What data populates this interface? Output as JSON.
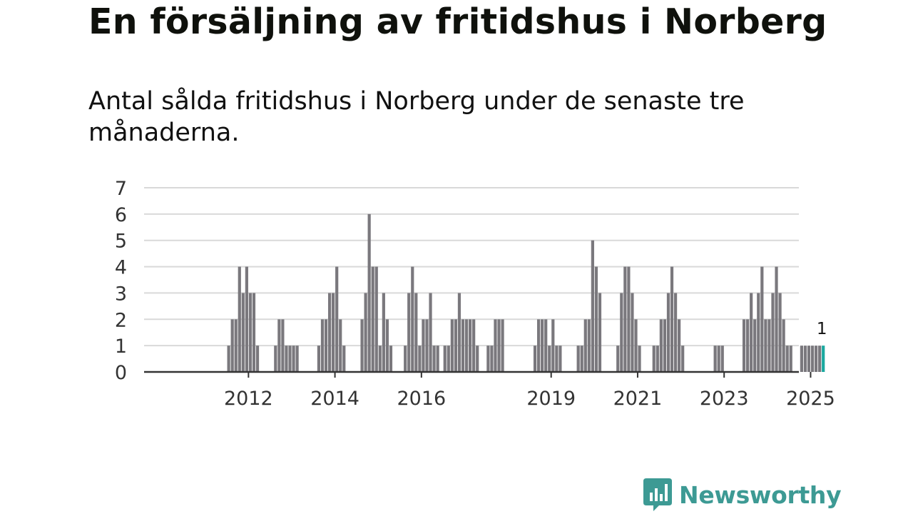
{
  "page": {
    "title": "En försäljning av fritidshus i Norberg",
    "subtitle": "Antal sålda fritidshus i Norberg under de senaste tre månaderna.",
    "brand": "Newsworthy"
  },
  "colors": {
    "bar": "#7a787d",
    "highlight": "#1aa89f",
    "grid": "#d9d9d9",
    "axis": "#333333",
    "brand": "#3d9a94"
  },
  "chart_data": {
    "type": "bar",
    "title": "En försäljning av fritidshus i Norberg",
    "subtitle": "Antal sålda fritidshus i Norberg under de senaste tre månaderna.",
    "xlabel": "",
    "ylabel": "",
    "ylim": [
      0,
      7
    ],
    "yticks": [
      0,
      1,
      2,
      3,
      4,
      5,
      6,
      7
    ],
    "grid": true,
    "x_start": "2011-01",
    "x_ticks": [
      {
        "label": "2012",
        "index": 18
      },
      {
        "label": "2014",
        "index": 42
      },
      {
        "label": "2016",
        "index": 66
      },
      {
        "label": "2019",
        "index": 102
      },
      {
        "label": "2021",
        "index": 126
      },
      {
        "label": "2023",
        "index": 150
      },
      {
        "label": "2025",
        "index": 174
      }
    ],
    "highlight_label": "1",
    "values": [
      0,
      0,
      0,
      0,
      0,
      0,
      0,
      0,
      0,
      0,
      0,
      0,
      1,
      2,
      2,
      4,
      3,
      4,
      3,
      3,
      1,
      0,
      0,
      0,
      0,
      1,
      2,
      2,
      1,
      1,
      1,
      1,
      0,
      0,
      0,
      0,
      0,
      1,
      2,
      2,
      3,
      3,
      4,
      2,
      1,
      0,
      0,
      0,
      0,
      2,
      3,
      6,
      4,
      4,
      1,
      3,
      2,
      1,
      0,
      0,
      0,
      1,
      3,
      4,
      3,
      1,
      2,
      2,
      3,
      1,
      1,
      0,
      1,
      1,
      2,
      2,
      3,
      2,
      2,
      2,
      2,
      1,
      0,
      0,
      1,
      1,
      2,
      2,
      2,
      0,
      0,
      0,
      0,
      0,
      0,
      0,
      0,
      1,
      2,
      2,
      2,
      1,
      2,
      1,
      1,
      0,
      0,
      0,
      0,
      1,
      1,
      2,
      2,
      5,
      4,
      3,
      0,
      0,
      0,
      0,
      1,
      3,
      4,
      4,
      3,
      2,
      1,
      0,
      0,
      0,
      1,
      1,
      2,
      2,
      3,
      4,
      3,
      2,
      1,
      0,
      0,
      0,
      0,
      0,
      0,
      0,
      0,
      1,
      1,
      1,
      0,
      0,
      0,
      0,
      0,
      2,
      2,
      3,
      2,
      3,
      4,
      2,
      2,
      3,
      4,
      3,
      2,
      1,
      1,
      0,
      0,
      1,
      1,
      1,
      1,
      1,
      1,
      1
    ]
  }
}
